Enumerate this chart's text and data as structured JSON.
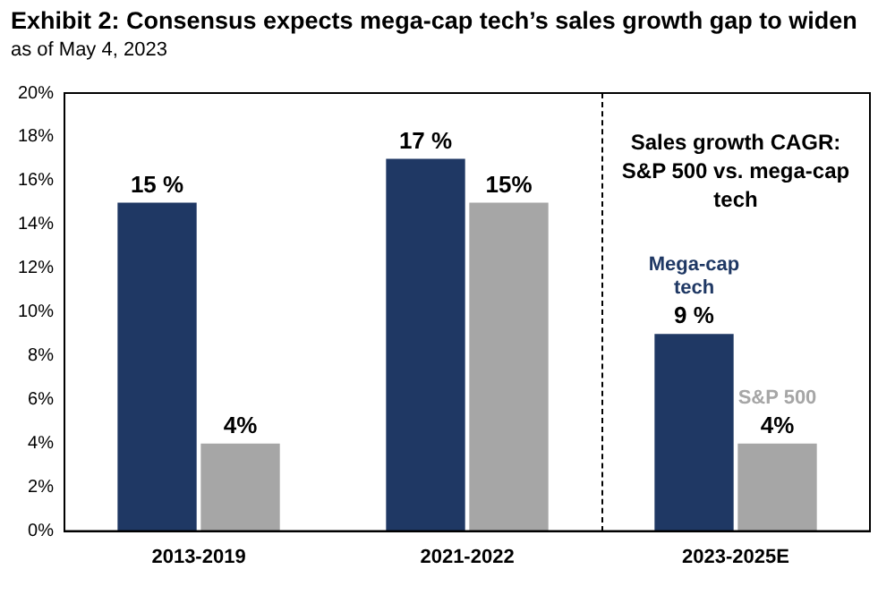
{
  "chart_data": {
    "type": "bar",
    "title": "Exhibit 2: Consensus expects mega-cap tech’s sales growth gap to widen",
    "subtitle": "as of May 4, 2023",
    "categories": [
      "2013-2019",
      "2021-2022",
      "2023-2025E"
    ],
    "series": [
      {
        "name": "Mega-cap tech",
        "color": "#1f3864",
        "values": [
          15,
          17,
          9
        ],
        "value_labels": [
          "15 %",
          "17 %",
          "9 %"
        ]
      },
      {
        "name": "S&P 500",
        "color": "#a6a6a6",
        "values": [
          4,
          15,
          4
        ],
        "value_labels": [
          "4%",
          "15%",
          "4%"
        ]
      }
    ],
    "ylim": [
      0,
      20
    ],
    "yticks": [
      {
        "value": 0,
        "label": "0%"
      },
      {
        "value": 2,
        "label": "2%"
      },
      {
        "value": 4,
        "label": "4%"
      },
      {
        "value": 6,
        "label": "6%"
      },
      {
        "value": 8,
        "label": "8%"
      },
      {
        "value": 10,
        "label": "10%"
      },
      {
        "value": 12,
        "label": "12%"
      },
      {
        "value": 14,
        "label": "14%"
      },
      {
        "value": 16,
        "label": "16%"
      },
      {
        "value": 18,
        "label": "18%"
      },
      {
        "value": 20,
        "label": "20%"
      }
    ],
    "grid": false,
    "legend": false,
    "annotations": [
      "Sales growth CAGR: S&P 500 vs. mega-cap tech"
    ]
  }
}
